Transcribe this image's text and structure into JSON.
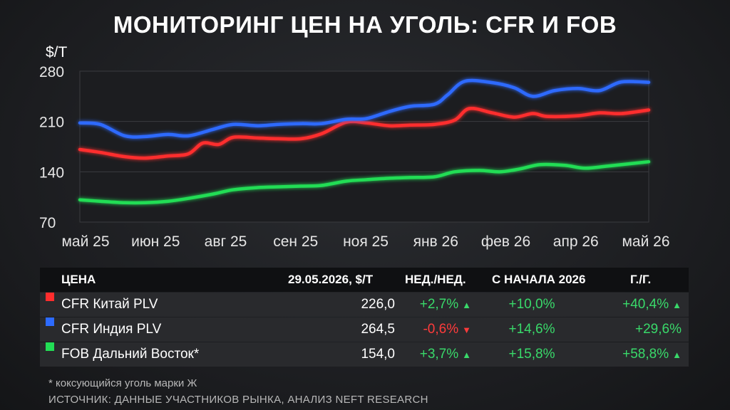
{
  "title": "МОНИТОРИНГ ЦЕН НА УГОЛЬ: CFR И FOB",
  "chart_data": {
    "type": "line",
    "ylabel": "$/Т",
    "ylim": [
      70,
      280
    ],
    "yticks": [
      280,
      210,
      140,
      70
    ],
    "x_tick_labels": [
      "май 25",
      "июн 25",
      "авг 25",
      "сен 25",
      "ноя 25",
      "янв 26",
      "фев 26",
      "апр 26",
      "май 26"
    ],
    "x_range": [
      "2025-05-01",
      "2026-05-29"
    ],
    "grid": true,
    "colors": {
      "china": "#ff2d2d",
      "india": "#2d6bff",
      "fob": "#22dd55"
    },
    "series": [
      {
        "name": "CFR Китай PLV",
        "color": "#ff2d2d",
        "points": [
          [
            "2025-05-01",
            171
          ],
          [
            "2025-05-15",
            167
          ],
          [
            "2025-06-01",
            161
          ],
          [
            "2025-06-15",
            159
          ],
          [
            "2025-07-01",
            162
          ],
          [
            "2025-07-15",
            165
          ],
          [
            "2025-07-25",
            180
          ],
          [
            "2025-08-05",
            178
          ],
          [
            "2025-08-15",
            188
          ],
          [
            "2025-09-01",
            187
          ],
          [
            "2025-09-15",
            186
          ],
          [
            "2025-10-01",
            186
          ],
          [
            "2025-10-15",
            193
          ],
          [
            "2025-11-01",
            209
          ],
          [
            "2025-11-15",
            208
          ],
          [
            "2025-12-01",
            204
          ],
          [
            "2025-12-15",
            205
          ],
          [
            "2026-01-01",
            206
          ],
          [
            "2026-01-15",
            212
          ],
          [
            "2026-01-25",
            228
          ],
          [
            "2026-02-10",
            222
          ],
          [
            "2026-02-25",
            216
          ],
          [
            "2026-03-10",
            221
          ],
          [
            "2026-03-20",
            217
          ],
          [
            "2026-04-10",
            218
          ],
          [
            "2026-04-25",
            222
          ],
          [
            "2026-05-10",
            221
          ],
          [
            "2026-05-29",
            226
          ]
        ]
      },
      {
        "name": "CFR Индия PLV",
        "color": "#2d6bff",
        "points": [
          [
            "2025-05-01",
            208
          ],
          [
            "2025-05-15",
            206
          ],
          [
            "2025-06-01",
            190
          ],
          [
            "2025-06-15",
            189
          ],
          [
            "2025-07-01",
            192
          ],
          [
            "2025-07-15",
            190
          ],
          [
            "2025-08-01",
            199
          ],
          [
            "2025-08-15",
            206
          ],
          [
            "2025-09-01",
            204
          ],
          [
            "2025-09-15",
            206
          ],
          [
            "2025-10-01",
            207
          ],
          [
            "2025-10-15",
            207
          ],
          [
            "2025-11-01",
            213
          ],
          [
            "2025-11-15",
            214
          ],
          [
            "2025-12-01",
            224
          ],
          [
            "2025-12-15",
            231
          ],
          [
            "2026-01-01",
            234
          ],
          [
            "2026-01-10",
            247
          ],
          [
            "2026-01-22",
            266
          ],
          [
            "2026-02-10",
            264
          ],
          [
            "2026-02-25",
            257
          ],
          [
            "2026-03-10",
            245
          ],
          [
            "2026-03-25",
            253
          ],
          [
            "2026-04-10",
            256
          ],
          [
            "2026-04-25",
            253
          ],
          [
            "2026-05-10",
            265
          ],
          [
            "2026-05-29",
            264.5
          ]
        ]
      },
      {
        "name": "FOB Дальний Восток*",
        "color": "#22dd55",
        "points": [
          [
            "2025-05-01",
            101
          ],
          [
            "2025-05-15",
            99
          ],
          [
            "2025-06-01",
            97
          ],
          [
            "2025-06-15",
            97
          ],
          [
            "2025-07-01",
            99
          ],
          [
            "2025-07-15",
            103
          ],
          [
            "2025-08-01",
            109
          ],
          [
            "2025-08-15",
            115
          ],
          [
            "2025-09-01",
            118
          ],
          [
            "2025-09-15",
            119
          ],
          [
            "2025-10-01",
            120
          ],
          [
            "2025-10-15",
            121
          ],
          [
            "2025-11-01",
            127
          ],
          [
            "2025-11-15",
            129
          ],
          [
            "2025-12-01",
            131
          ],
          [
            "2025-12-15",
            132
          ],
          [
            "2026-01-01",
            133
          ],
          [
            "2026-01-15",
            140
          ],
          [
            "2026-02-01",
            142
          ],
          [
            "2026-02-15",
            140
          ],
          [
            "2026-03-01",
            144
          ],
          [
            "2026-03-15",
            150
          ],
          [
            "2026-04-01",
            149
          ],
          [
            "2026-04-15",
            145
          ],
          [
            "2026-05-01",
            148
          ],
          [
            "2026-05-29",
            154
          ]
        ]
      }
    ]
  },
  "table": {
    "headers": {
      "name": "ЦЕНА",
      "price": "29.05.2026, $/Т",
      "wk": "НЕД./НЕД.",
      "ytd": "С НАЧАЛА 2026",
      "yoy": "Г./Г."
    },
    "rows": [
      {
        "name": "CFR Китай PLV",
        "color": "#ff2d2d",
        "price": "226,0",
        "wk": "+2,7%",
        "wk_dir": "up",
        "ytd": "+10,0%",
        "yoy": "+40,4%",
        "yoy_dir": "up"
      },
      {
        "name": "CFR Индия PLV",
        "color": "#2d6bff",
        "price": "264,5",
        "wk": "-0,6%",
        "wk_dir": "down",
        "ytd": "+14,6%",
        "yoy": "+29,6%",
        "yoy_dir": ""
      },
      {
        "name": "FOB Дальний Восток*",
        "color": "#22dd55",
        "price": "154,0",
        "wk": "+3,7%",
        "wk_dir": "up",
        "ytd": "+15,8%",
        "yoy": "+58,8%",
        "yoy_dir": "up"
      }
    ]
  },
  "footnote": "* коксующийся уголь марки Ж",
  "source": "ИСТОЧНИК: ДАННЫЕ УЧАСТНИКОВ РЫНКА, АНАЛИЗ NEFT RESEARCH"
}
